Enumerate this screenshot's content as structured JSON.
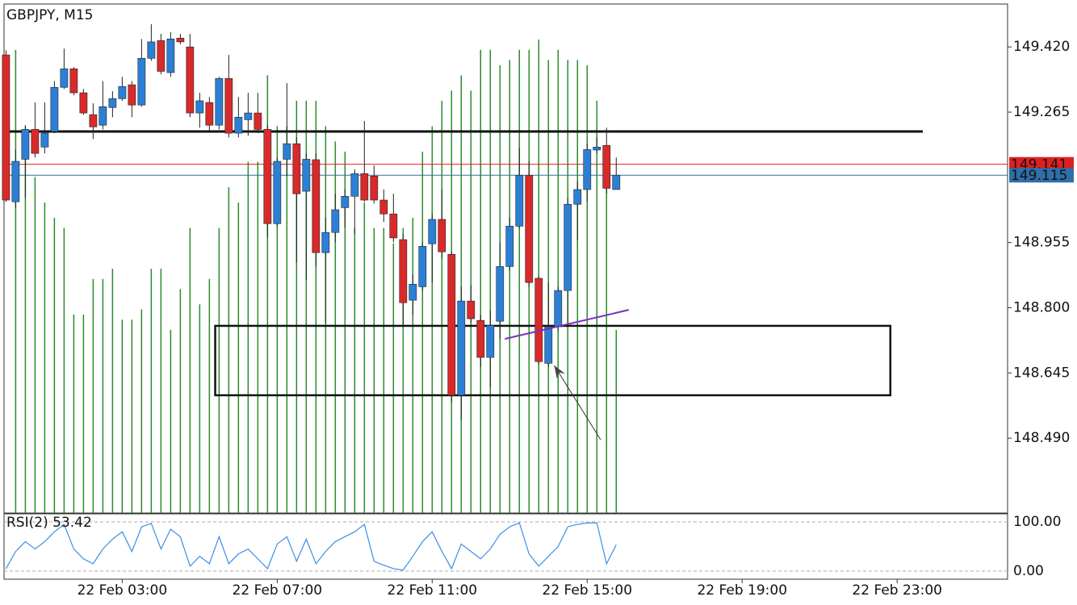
{
  "chart_data": {
    "type": "candlestick",
    "title": "GBPJPY, M15",
    "up_color": "#2b80d6",
    "down_color": "#d82a2a",
    "outline_color": "#222222",
    "ylim": [
      148.312,
      149.522
    ],
    "yticks": [
      {
        "value": 149.42,
        "label": "149.420"
      },
      {
        "value": 149.265,
        "label": "149.265"
      },
      {
        "value": 148.955,
        "label": "148.955"
      },
      {
        "value": 148.8,
        "label": "148.800"
      },
      {
        "value": 148.645,
        "label": "148.645"
      },
      {
        "value": 148.49,
        "label": "148.490"
      }
    ],
    "xlim": [
      -0.2,
      103.4
    ],
    "xticks": [
      {
        "value": 12,
        "label": "22 Feb 03:00"
      },
      {
        "value": 28,
        "label": "22 Feb 07:00"
      },
      {
        "value": 44,
        "label": "22 Feb 11:00"
      },
      {
        "value": 60,
        "label": "22 Feb 15:00"
      },
      {
        "value": 76,
        "label": "22 Feb 19:00"
      },
      {
        "value": 92,
        "label": "22 Feb 23:00"
      }
    ],
    "open": [
      149.401,
      149.052,
      149.153,
      149.224,
      149.182,
      149.219,
      149.324,
      149.368,
      149.311,
      149.259,
      149.234,
      149.276,
      149.297,
      149.33,
      149.282,
      149.393,
      149.435,
      149.359,
      149.441,
      149.42,
      149.263,
      149.288,
      149.234,
      149.345,
      149.215,
      149.247,
      149.263,
      149.224,
      149.0,
      149.153,
      149.19,
      149.077,
      149.152,
      148.931,
      148.979,
      149.038,
      149.065,
      149.119,
      149.113,
      149.056,
      149.023,
      148.962,
      148.818,
      148.85,
      148.952,
      149.01,
      148.927,
      148.592,
      148.816,
      148.77,
      148.682,
      148.768,
      148.898,
      148.994,
      149.115,
      148.87,
      148.668,
      148.755,
      148.841,
      149.046,
      149.081,
      149.175,
      149.186,
      149.081
    ],
    "high": [
      149.412,
      149.176,
      149.234,
      149.288,
      149.288,
      149.339,
      149.416,
      149.372,
      149.32,
      149.286,
      149.339,
      149.315,
      149.349,
      149.339,
      149.439,
      149.474,
      149.451,
      149.455,
      149.451,
      149.451,
      149.311,
      149.301,
      149.349,
      149.401,
      149.301,
      149.311,
      149.311,
      149.234,
      149.157,
      149.334,
      149.205,
      149.167,
      149.167,
      149.014,
      149.071,
      149.081,
      149.129,
      149.244,
      149.138,
      149.081,
      149.071,
      148.975,
      148.879,
      148.956,
      149.023,
      149.081,
      148.933,
      148.85,
      148.854,
      148.783,
      148.793,
      148.956,
      149.014,
      149.18,
      149.148,
      148.874,
      148.86,
      148.85,
      149.061,
      149.1,
      149.19,
      149.205,
      149.228,
      149.157
    ],
    "low": [
      149.052,
      149.037,
      149.061,
      149.157,
      149.167,
      149.215,
      149.32,
      149.305,
      149.259,
      149.201,
      149.224,
      149.253,
      149.292,
      149.253,
      149.278,
      149.387,
      149.355,
      149.349,
      149.426,
      149.253,
      149.228,
      149.221,
      149.224,
      149.205,
      149.205,
      149.209,
      149.215,
      148.966,
      148.994,
      149.113,
      148.908,
      148.866,
      148.898,
      148.764,
      148.956,
      148.991,
      148.975,
      149.052,
      149.048,
      149.004,
      148.956,
      148.755,
      148.783,
      148.841,
      148.86,
      148.918,
      148.576,
      148.534,
      148.764,
      148.659,
      148.611,
      148.726,
      148.889,
      148.989,
      148.85,
      148.665,
      148.659,
      148.745,
      148.764,
      148.96,
      149.052,
      149.167,
      149.071,
      149.081
    ],
    "close": [
      149.056,
      149.148,
      149.224,
      149.167,
      149.215,
      149.324,
      149.368,
      149.311,
      149.263,
      149.23,
      149.278,
      149.297,
      149.326,
      149.282,
      149.393,
      149.432,
      149.362,
      149.439,
      149.432,
      149.263,
      149.292,
      149.234,
      149.345,
      149.215,
      149.253,
      149.263,
      149.224,
      149.0,
      149.148,
      149.19,
      149.071,
      149.153,
      148.931,
      148.979,
      149.033,
      149.065,
      149.119,
      149.056,
      149.056,
      149.023,
      148.966,
      148.812,
      148.856,
      148.946,
      149.01,
      148.933,
      148.592,
      148.816,
      148.774,
      148.682,
      148.758,
      148.898,
      148.994,
      149.115,
      148.86,
      148.672,
      148.755,
      148.841,
      149.046,
      149.081,
      149.176,
      149.182,
      149.084,
      149.115
    ],
    "price_lines": [
      {
        "value": 149.141,
        "label": "149.141",
        "color": "#e02020"
      },
      {
        "value": 149.115,
        "label": "149.115",
        "color": "#2f6fa8"
      }
    ],
    "volume": {
      "color": "#2a8a2a",
      "ylim": [
        0,
        100
      ],
      "values": [
        null,
        91,
        76,
        66,
        61,
        58,
        56,
        39,
        39,
        46,
        46,
        48,
        38,
        38,
        40,
        48,
        48,
        36,
        44,
        56,
        41,
        46,
        56,
        64,
        61,
        69,
        69,
        86,
        76,
        76,
        81,
        81,
        81,
        76,
        73,
        71,
        56,
        61,
        56,
        56,
        53,
        56,
        58,
        71,
        76,
        81,
        83,
        86,
        83,
        91,
        91,
        88,
        89,
        91,
        91,
        93,
        89,
        91,
        89,
        89,
        88,
        81,
        71,
        36
      ]
    },
    "hlines": [
      {
        "value": 149.219,
        "color": "#111111"
      }
    ],
    "rectangle": {
      "x": [
        21.6,
        91.3
      ],
      "y": [
        148.592,
        148.757
      ],
      "color": "#111111"
    },
    "trendline": {
      "x": [
        51.5,
        64.3
      ],
      "y": [
        148.726,
        148.795
      ],
      "color": "#7b2fbe"
    },
    "arrow": {
      "x": [
        61.4,
        56.6
      ],
      "y": [
        148.486,
        148.663
      ],
      "color": "#333333"
    },
    "rsi": {
      "label": "RSI(2)",
      "color": "#3a8ee6",
      "ylim": [
        -16.4,
        116.4
      ],
      "yticks": [
        {
          "value": 100,
          "label": "100.00"
        },
        {
          "value": 0,
          "label": "0.00"
        }
      ],
      "values": [
        5,
        40,
        60,
        45,
        60,
        80,
        95,
        45,
        25,
        15,
        45,
        65,
        80,
        40,
        90,
        97,
        45,
        85,
        70,
        10,
        30,
        15,
        70,
        15,
        35,
        45,
        25,
        5,
        55,
        70,
        20,
        65,
        15,
        40,
        60,
        70,
        80,
        95,
        20,
        12,
        5,
        2,
        30,
        60,
        80,
        40,
        5,
        55,
        40,
        25,
        45,
        75,
        90,
        98,
        35,
        10,
        30,
        50,
        90,
        95,
        98,
        98,
        15,
        53.42
      ]
    }
  }
}
